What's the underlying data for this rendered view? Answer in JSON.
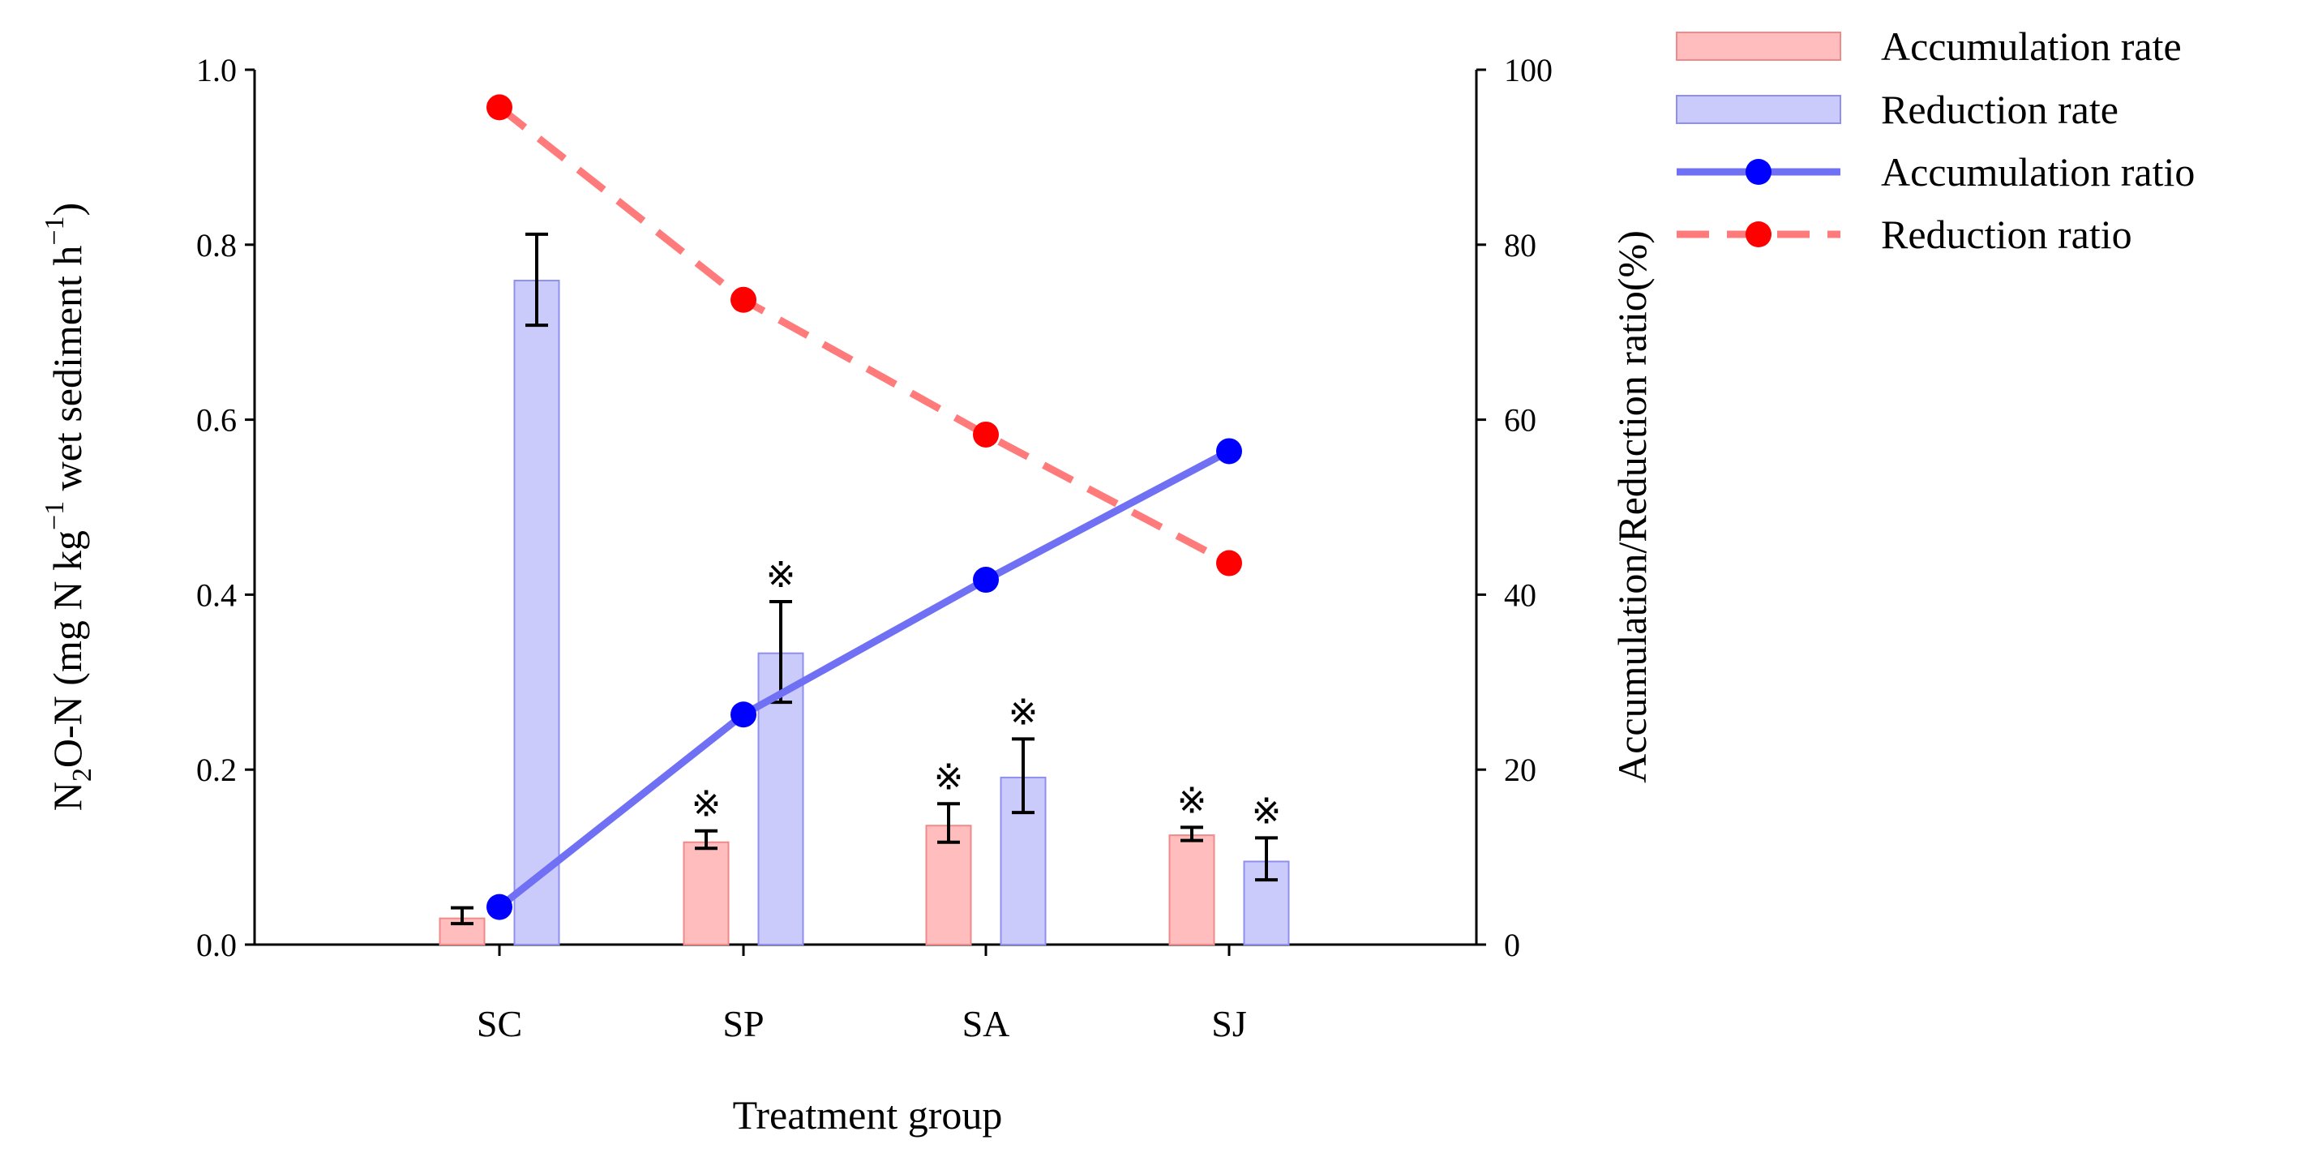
{
  "chart_data": {
    "type": "bar",
    "xlabel": "Treatment group",
    "ylabel_parts": [
      "N",
      "2",
      "O-N (mg N kg",
      "−1",
      " wet sediment h",
      "−1",
      ")"
    ],
    "ylabel": "N2O-N (mg N kg-1 wet sediment h-1)",
    "y2label": "Accumulation/Reduction ratio(%)",
    "categories": [
      "SC",
      "SP",
      "SA",
      "SJ"
    ],
    "ylim": [
      0,
      1.0
    ],
    "y2lim": [
      0,
      100
    ],
    "yticks": [
      "0.0",
      "0.2",
      "0.4",
      "0.6",
      "0.8",
      "1.0"
    ],
    "y2ticks": [
      "0",
      "20",
      "40",
      "60",
      "80",
      "100"
    ],
    "significance_mark": "※",
    "legend_position": "top-right outside",
    "series": [
      {
        "name": "Accumulation rate",
        "kind": "bar",
        "axis": "left",
        "color": "#ffbdbd",
        "edge": "#f08a8a",
        "values": [
          0.03,
          0.117,
          0.136,
          0.125
        ],
        "err_low": [
          0.024,
          0.11,
          0.117,
          0.119
        ],
        "err_high": [
          0.042,
          0.13,
          0.161,
          0.134
        ],
        "significant": [
          false,
          true,
          true,
          true
        ]
      },
      {
        "name": "Reduction rate",
        "kind": "bar",
        "axis": "left",
        "color": "#cbcbfb",
        "edge": "#8f8ff0",
        "values": [
          0.759,
          0.333,
          0.191,
          0.095
        ],
        "err_low": [
          0.708,
          0.277,
          0.151,
          0.074
        ],
        "err_high": [
          0.812,
          0.392,
          0.235,
          0.122
        ],
        "significant": [
          false,
          true,
          true,
          true
        ]
      },
      {
        "name": "Accumulation ratio",
        "kind": "line",
        "axis": "right",
        "color": "#7070f5",
        "marker": "#0000ff",
        "values": [
          4.3,
          26.3,
          41.7,
          56.4
        ]
      },
      {
        "name": "Reduction ratio",
        "kind": "line-dashed",
        "axis": "right",
        "color": "#ff7a7a",
        "marker": "#ff0000",
        "values": [
          95.7,
          73.7,
          58.3,
          43.6
        ]
      }
    ]
  }
}
